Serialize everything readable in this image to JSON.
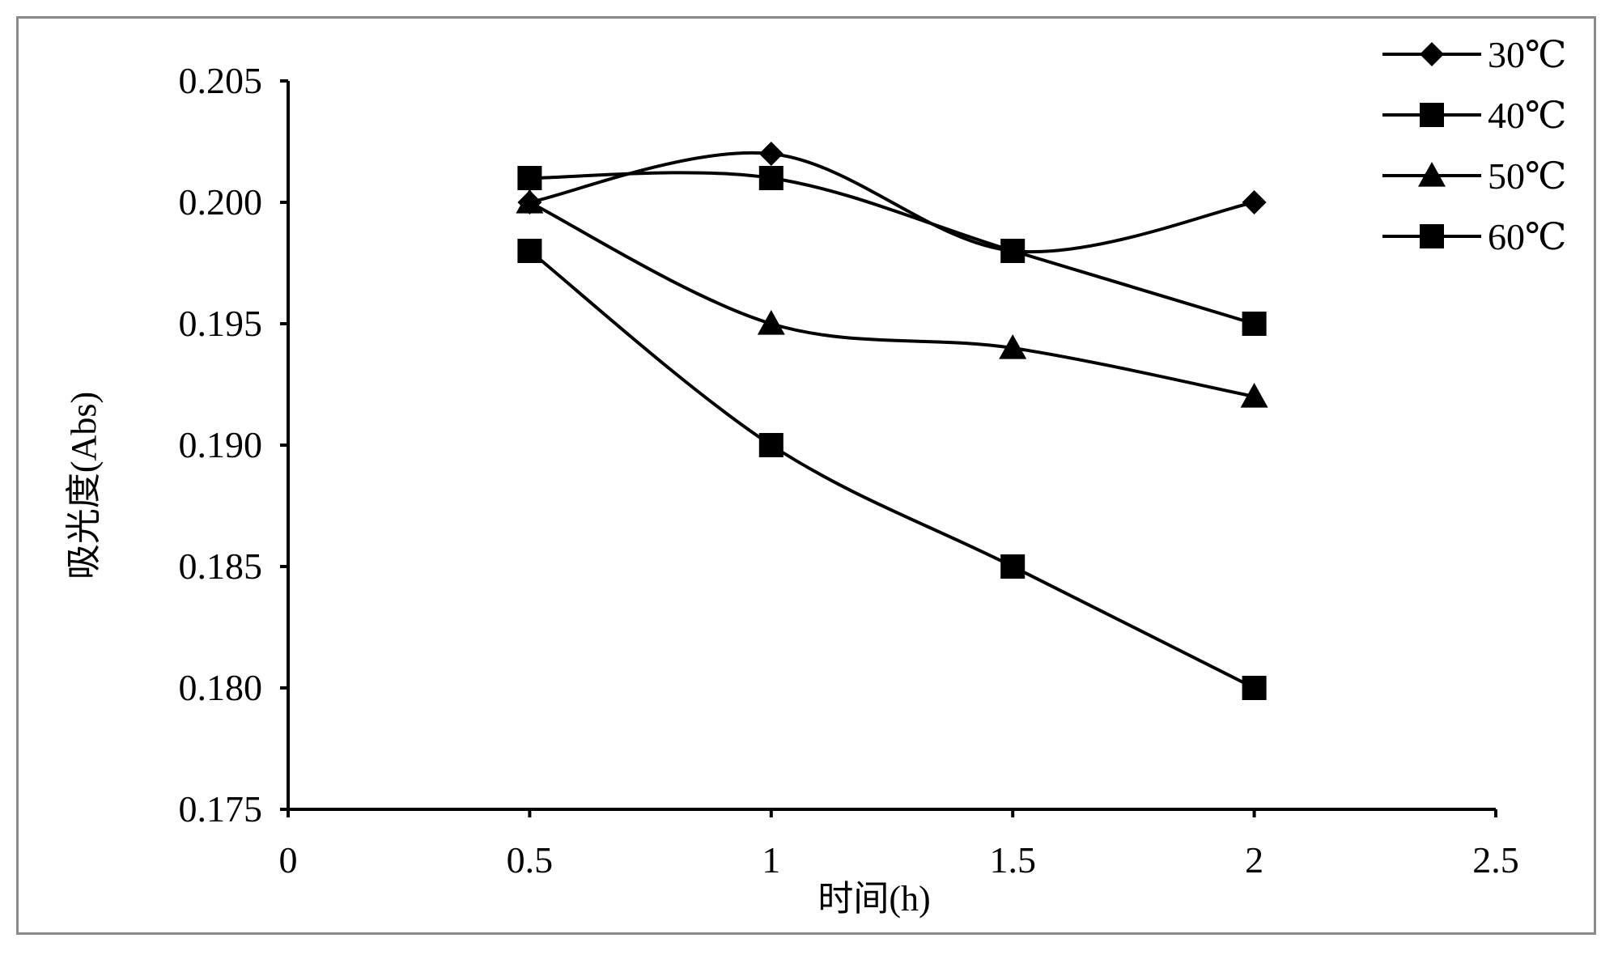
{
  "chart_data": {
    "type": "line",
    "smoothed": true,
    "xlabel": "时间(h)",
    "ylabel": "吸光度(Abs)",
    "xlim": [
      0,
      2.5
    ],
    "ylim": [
      0.175,
      0.205
    ],
    "x_ticks": [
      "0",
      "0.5",
      "1",
      "1.5",
      "2",
      "2.5"
    ],
    "x_tick_values": [
      0,
      0.5,
      1,
      1.5,
      2,
      2.5
    ],
    "y_ticks": [
      "0.175",
      "0.180",
      "0.185",
      "0.190",
      "0.195",
      "0.200",
      "0.205"
    ],
    "y_tick_values": [
      0.175,
      0.18,
      0.185,
      0.19,
      0.195,
      0.2,
      0.205
    ],
    "grid": false,
    "legend_position": "top-right",
    "x": [
      0.5,
      1,
      1.5,
      2
    ],
    "series": [
      {
        "name": "30℃",
        "marker": "diamond",
        "values": [
          0.2,
          0.202,
          0.198,
          0.2
        ]
      },
      {
        "name": "40℃",
        "marker": "square",
        "values": [
          0.201,
          0.201,
          0.198,
          0.195
        ]
      },
      {
        "name": "50℃",
        "marker": "triangle",
        "values": [
          0.2,
          0.195,
          0.194,
          0.192
        ]
      },
      {
        "name": "60℃",
        "marker": "square",
        "values": [
          0.198,
          0.19,
          0.185,
          0.18
        ]
      }
    ],
    "line_color": "#000000"
  }
}
